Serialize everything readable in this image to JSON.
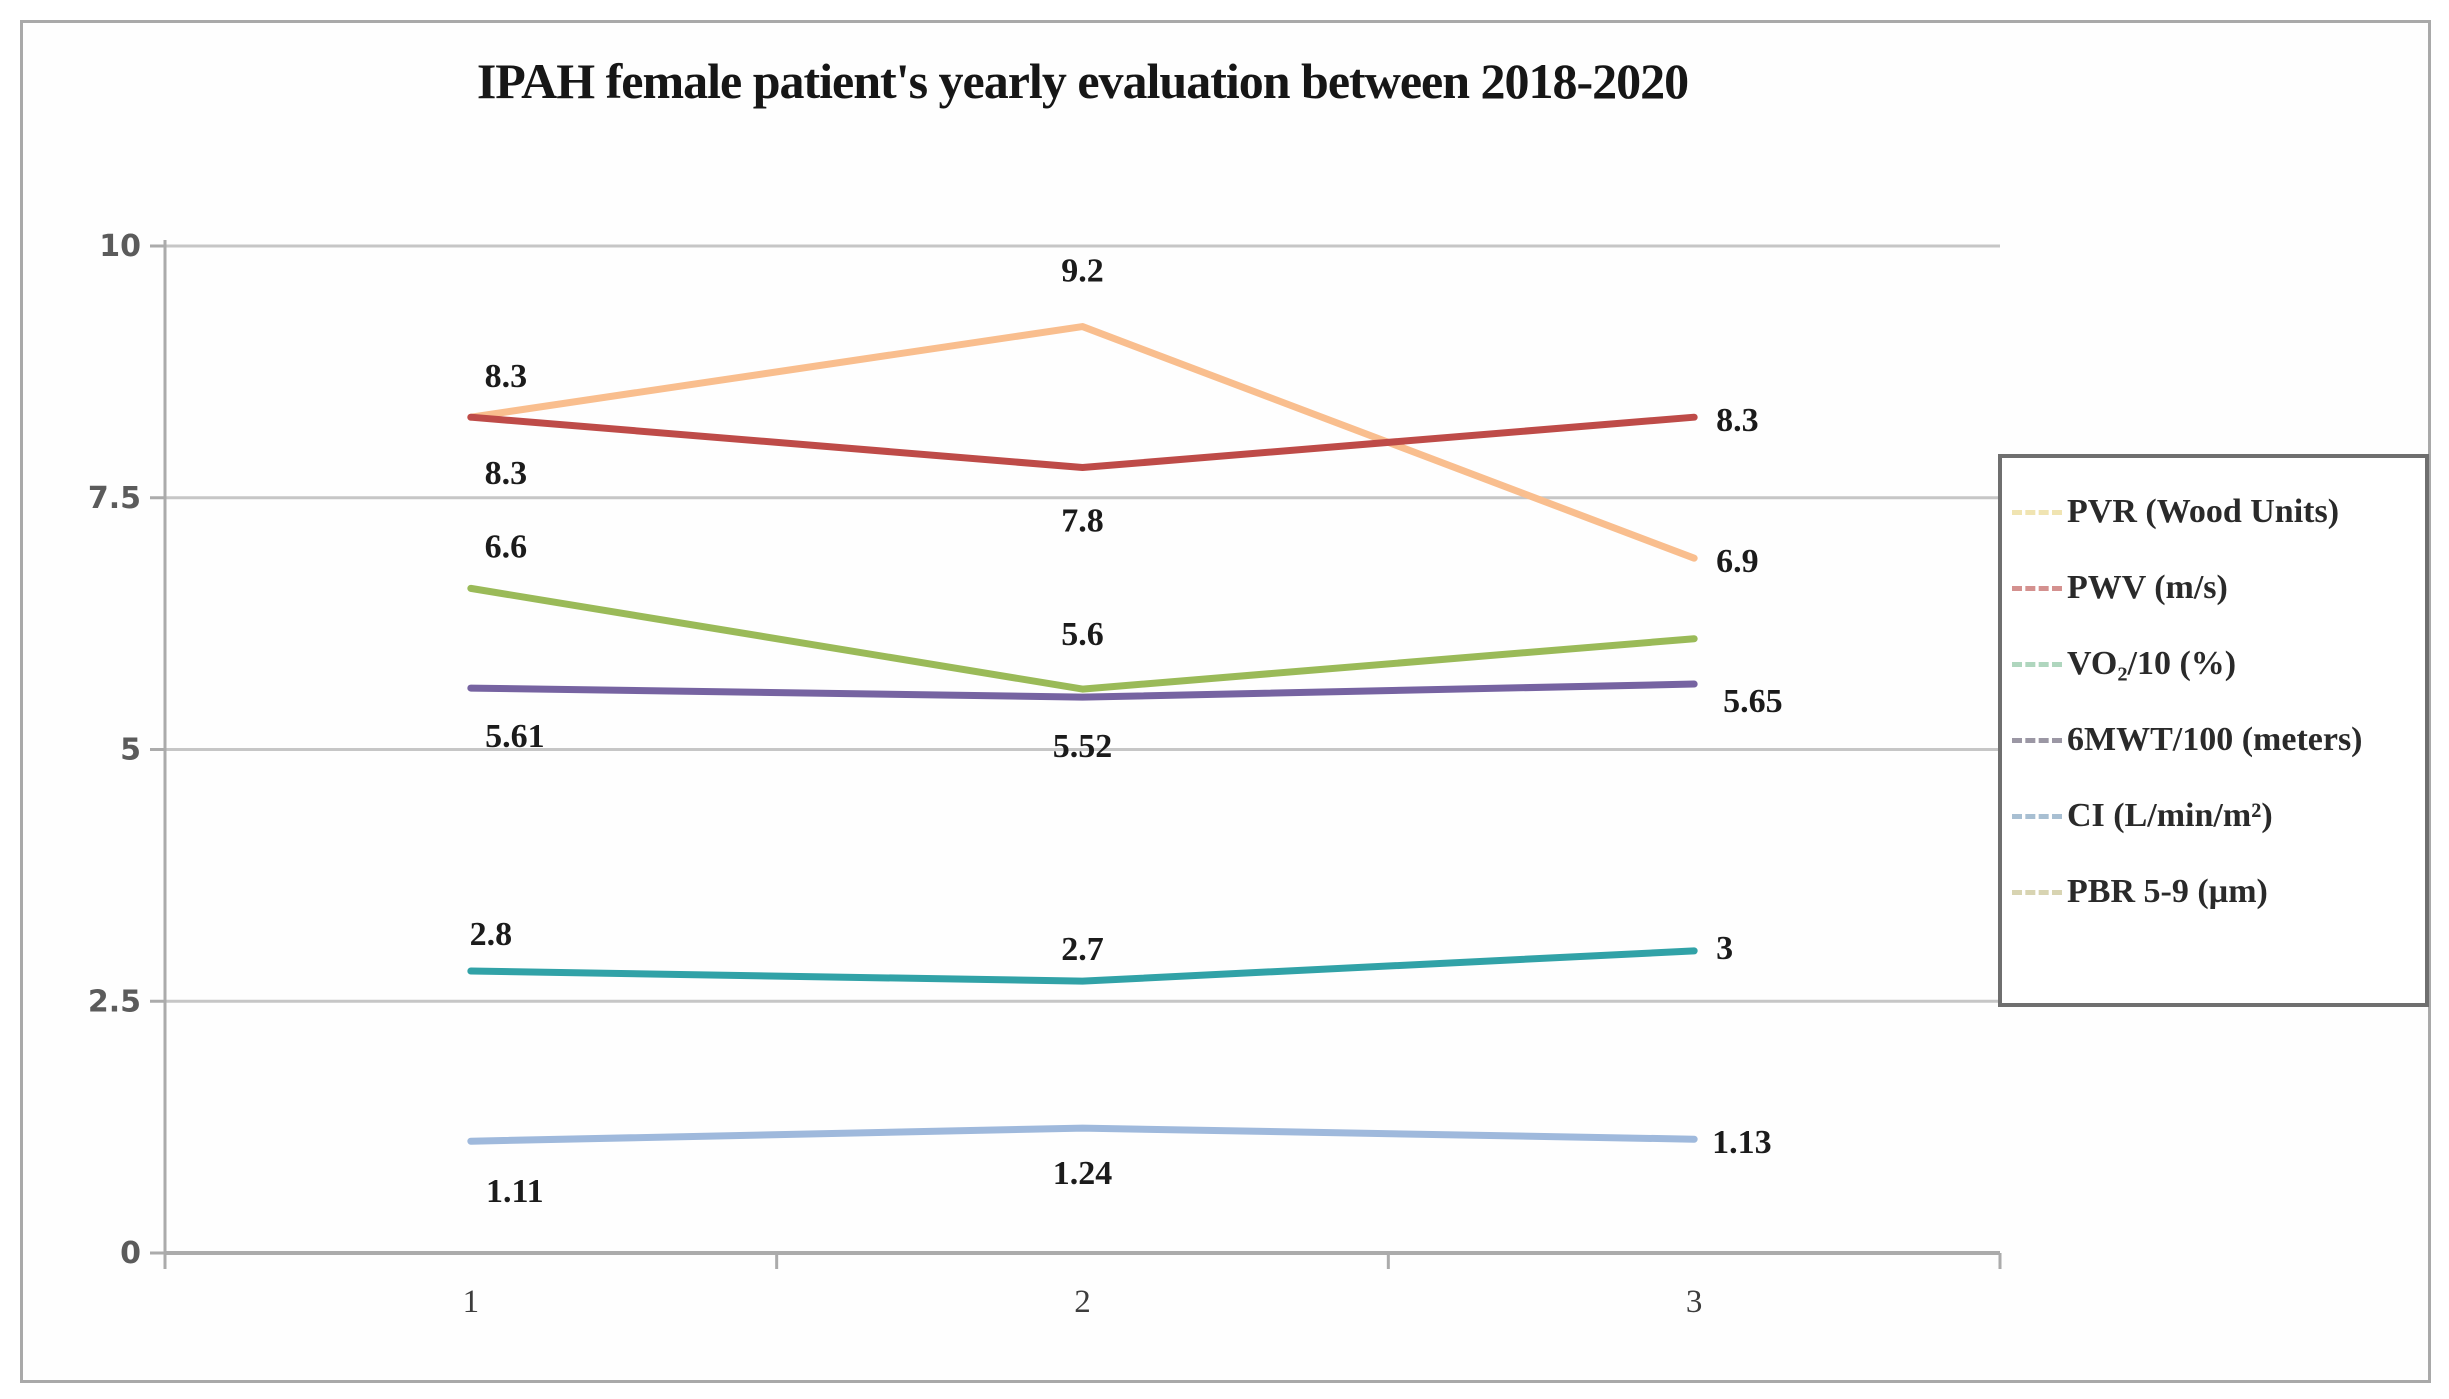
{
  "page": {
    "background": "#FFFFFF",
    "border_color": "#A9A9A9"
  },
  "colors": {
    "gridline": "#C6C6C6",
    "axis": "#ABABAB",
    "data_label": "#1B1B1B",
    "y_tick_label": "#5B5B5B",
    "x_tick_label": "#3D3D3D",
    "legend_border": "#6F6F6F",
    "legend_text": "#2A2A2A"
  },
  "chart_data": {
    "type": "line",
    "title": "IPAH female patient's yearly evaluation between 2018-2020",
    "xlabel": "",
    "ylabel": "",
    "ylim": [
      0,
      10
    ],
    "grid": true,
    "legend_position": "right",
    "x_categories": [
      "1",
      "2",
      "3"
    ],
    "y_ticks": [
      {
        "label": "0",
        "value": 0
      },
      {
        "label": "2.5",
        "value": 2.5
      },
      {
        "label": "5",
        "value": 5
      },
      {
        "label": "7.5",
        "value": 7.5
      },
      {
        "label": "10",
        "value": 10
      }
    ],
    "series": [
      {
        "name": "PVR (Wood Units)",
        "color": "#F9BE8E",
        "swatch_color": "#F0E4B2",
        "values": [
          8.3,
          9.2,
          6.9
        ],
        "labels": [
          {
            "text": "8.3",
            "pos": "above",
            "nx": 35,
            "ny": 4
          },
          {
            "text": "9.2",
            "pos": "above",
            "ny": -11
          },
          {
            "text": "6.9",
            "pos": "right"
          }
        ]
      },
      {
        "name": "PWV (m/s)",
        "color": "#BE4B48",
        "swatch_color": "#D4918F",
        "values": [
          8.3,
          7.8,
          8.3
        ],
        "labels": [
          {
            "text": "8.3",
            "pos": "below",
            "nx": 35,
            "ny": 6
          },
          {
            "text": "7.8",
            "pos": "below",
            "ny": 3
          },
          {
            "text": "8.3",
            "pos": "right"
          }
        ]
      },
      {
        "name": "VO₂/10 (%)",
        "color": "#9ABA58",
        "swatch_color": "#AFD6BE",
        "values": [
          6.6,
          5.6,
          6.1
        ],
        "labels": [
          {
            "text": "6.6",
            "pos": "above",
            "nx": 35,
            "ny": 3
          },
          {
            "text": "5.6",
            "pos": "above",
            "ny": -10
          },
          null
        ]
      },
      {
        "name": "6MWT/100 (meters)",
        "color": "#7663A1",
        "swatch_color": "#9B97A4",
        "values": [
          5.61,
          5.52,
          5.65
        ],
        "labels": [
          {
            "text": "5.61",
            "pos": "below",
            "nx": 44,
            "ny": -2
          },
          {
            "text": "5.52",
            "pos": "below",
            "ny": -1
          },
          {
            "text": "5.65",
            "pos": "below-right"
          }
        ]
      },
      {
        "name": "CI (L/min/m²)",
        "color": "#31A2A7",
        "swatch_color": "#A8BFD2",
        "values": [
          2.8,
          2.7,
          3
        ],
        "labels": [
          {
            "text": "2.8",
            "pos": "above",
            "nx": 20,
            "ny": 8
          },
          {
            "text": "2.7",
            "pos": "above",
            "ny": 13
          },
          {
            "text": "3",
            "pos": "right",
            "ny": -6
          }
        ]
      },
      {
        "name": "PBR 5-9 (µm)",
        "color": "#9FB9DC",
        "swatch_color": "#D8D4B2",
        "values": [
          1.11,
          1.24,
          1.13
        ],
        "labels": [
          {
            "text": "1.11",
            "pos": "below",
            "nx": 44
          },
          {
            "text": "1.24",
            "pos": "below",
            "ny": -5
          },
          {
            "text": "1.13",
            "pos": "right",
            "nx": -4
          }
        ]
      }
    ]
  }
}
